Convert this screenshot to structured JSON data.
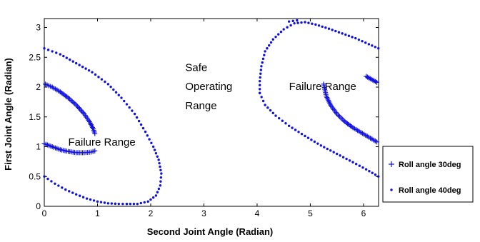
{
  "chart_data": {
    "type": "scatter",
    "xlabel": "Second Joint Angle (Radian)",
    "ylabel": "First Joint Angle (Radian)",
    "xlim": [
      0,
      6.283
    ],
    "ylim": [
      0,
      3.15
    ],
    "xticks": [
      "0",
      "1",
      "2",
      "3",
      "4",
      "5",
      "6"
    ],
    "yticks": [
      "0",
      "0.5",
      "1",
      "1.5",
      "2",
      "2.5",
      "3"
    ],
    "grid": false,
    "legend_position": "right, outside plot",
    "annotations": [
      {
        "text": "Failure Range",
        "x": 0.45,
        "y": 1.02
      },
      {
        "text": "Safe",
        "x": 2.65,
        "y": 2.27
      },
      {
        "text": "Operating",
        "x": 2.65,
        "y": 1.95
      },
      {
        "text": "Range",
        "x": 2.65,
        "y": 1.63
      },
      {
        "text": "Failure Range",
        "x": 4.6,
        "y": 1.95
      }
    ],
    "series": [
      {
        "name": "Roll angle 30deg",
        "marker": "plus",
        "color": "#1010e0",
        "segments": [
          [
            [
              0.02,
              2.05
            ],
            [
              0.15,
              2.0
            ],
            [
              0.3,
              1.92
            ],
            [
              0.45,
              1.82
            ],
            [
              0.6,
              1.7
            ],
            [
              0.75,
              1.55
            ],
            [
              0.85,
              1.42
            ],
            [
              0.92,
              1.3
            ],
            [
              0.95,
              1.22
            ]
          ],
          [
            [
              0.0,
              1.05
            ],
            [
              0.15,
              1.0
            ],
            [
              0.3,
              0.95
            ],
            [
              0.45,
              0.92
            ],
            [
              0.6,
              0.9
            ],
            [
              0.75,
              0.9
            ],
            [
              0.88,
              0.91
            ],
            [
              0.95,
              0.93
            ]
          ],
          [
            [
              5.25,
              2.05
            ],
            [
              5.3,
              1.85
            ],
            [
              5.38,
              1.7
            ],
            [
              5.5,
              1.55
            ],
            [
              5.65,
              1.42
            ],
            [
              5.8,
              1.32
            ],
            [
              5.95,
              1.24
            ],
            [
              6.1,
              1.16
            ],
            [
              6.25,
              1.08
            ]
          ],
          [
            [
              6.05,
              2.18
            ],
            [
              6.15,
              2.13
            ],
            [
              6.25,
              2.08
            ]
          ]
        ]
      },
      {
        "name": "Roll angle 40deg",
        "marker": "dot",
        "color": "#1010e0",
        "segments": [
          [
            [
              0.0,
              2.65
            ],
            [
              0.3,
              2.55
            ],
            [
              0.6,
              2.4
            ],
            [
              0.9,
              2.25
            ],
            [
              1.2,
              2.05
            ],
            [
              1.45,
              1.82
            ],
            [
              1.7,
              1.55
            ],
            [
              1.9,
              1.25
            ],
            [
              2.05,
              1.0
            ],
            [
              2.15,
              0.78
            ],
            [
              2.2,
              0.55
            ],
            [
              2.18,
              0.35
            ],
            [
              2.1,
              0.18
            ],
            [
              1.95,
              0.08
            ],
            [
              1.75,
              0.04
            ],
            [
              1.55,
              0.04
            ]
          ],
          [
            [
              0.0,
              0.5
            ],
            [
              0.2,
              0.38
            ],
            [
              0.4,
              0.28
            ],
            [
              0.6,
              0.2
            ],
            [
              0.8,
              0.13
            ],
            [
              1.0,
              0.08
            ],
            [
              1.2,
              0.05
            ],
            [
              1.4,
              0.04
            ],
            [
              1.55,
              0.04
            ]
          ],
          [
            [
              4.05,
              1.9
            ],
            [
              4.05,
              2.1
            ],
            [
              4.08,
              2.35
            ],
            [
              4.15,
              2.6
            ],
            [
              4.3,
              2.8
            ],
            [
              4.5,
              2.97
            ],
            [
              4.7,
              3.07
            ],
            [
              4.9,
              3.09
            ],
            [
              5.1,
              3.05
            ],
            [
              5.35,
              2.98
            ],
            [
              5.6,
              2.9
            ],
            [
              5.85,
              2.82
            ],
            [
              6.1,
              2.72
            ],
            [
              6.28,
              2.65
            ]
          ],
          [
            [
              4.05,
              1.9
            ],
            [
              4.15,
              1.7
            ],
            [
              4.35,
              1.52
            ],
            [
              4.6,
              1.35
            ],
            [
              4.9,
              1.18
            ],
            [
              5.2,
              1.02
            ],
            [
              5.5,
              0.88
            ],
            [
              5.8,
              0.74
            ],
            [
              6.05,
              0.62
            ],
            [
              6.28,
              0.5
            ]
          ],
          [
            [
              4.6,
              3.1
            ],
            [
              4.75,
              3.12
            ]
          ]
        ]
      }
    ]
  }
}
